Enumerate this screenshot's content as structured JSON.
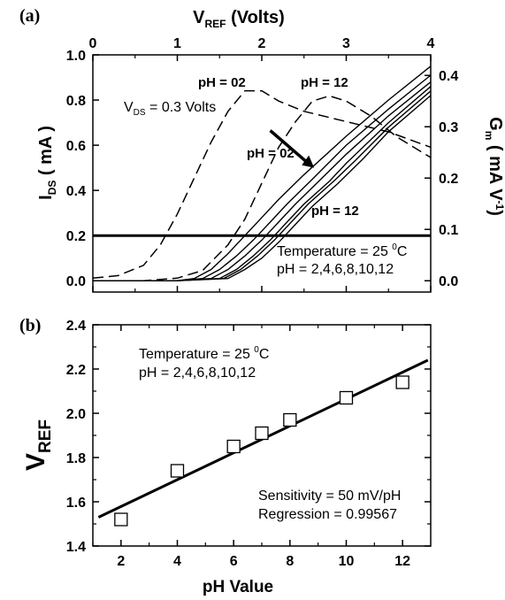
{
  "chart_data": [
    {
      "panel": "(a)",
      "type": "line",
      "top_xlabel": "V",
      "top_xlabel_sub": "REF",
      "top_xlabel_tail": " (Volts)",
      "xlim": [
        0,
        4
      ],
      "xticks": [
        "0",
        "1",
        "2",
        "3",
        "4"
      ],
      "ylabel_left": "I",
      "ylabel_left_sub": "DS",
      "ylabel_left_tail": " ( mA )",
      "ylim_left": [
        -0.05,
        1.0
      ],
      "yticks_left": [
        "0.0",
        "0.2",
        "0.4",
        "0.6",
        "0.8",
        "1.0"
      ],
      "ylabel_right": "G",
      "ylabel_right_sub": "m",
      "ylabel_right_tail": " ( mA V",
      "ylabel_right_sup": "-1",
      "ylabel_right_end": ")",
      "ylim_right": [
        -0.022,
        0.44
      ],
      "yticks_right": [
        "0.0",
        "0.1",
        "0.2",
        "0.3",
        "0.4"
      ],
      "hline": {
        "axis": "left",
        "y": 0.2
      },
      "annotations": {
        "vds": "V",
        "vds_sub": "DS",
        "vds_tail": " = 0.3 Volts",
        "gm_ph_low": "pH = 02",
        "gm_ph_high": "pH = 12",
        "ids_ph_low": "pH = 02",
        "ids_ph_high": "pH = 12",
        "temperature": "Temperature = 25 ",
        "temperature_sup": "0",
        "temperature_unit": "C",
        "ph_list": "pH = 2,4,6,8,10,12"
      },
      "series": [
        {
          "style": "solid",
          "axis": "left",
          "x": [
            0,
            0.5,
            1.0,
            1.2,
            1.4,
            1.6,
            1.8,
            2.0,
            2.2,
            2.5,
            3.0,
            3.5,
            4.0
          ],
          "y": [
            0,
            0,
            0,
            0.01,
            0.05,
            0.12,
            0.2,
            0.28,
            0.36,
            0.47,
            0.64,
            0.8,
            0.95
          ]
        },
        {
          "style": "solid",
          "axis": "left",
          "x": [
            0,
            0.5,
            1.0,
            1.3,
            1.5,
            1.7,
            1.9,
            2.1,
            2.3,
            2.6,
            3.0,
            3.5,
            4.0
          ],
          "y": [
            0,
            0,
            0,
            0.01,
            0.05,
            0.11,
            0.18,
            0.26,
            0.34,
            0.45,
            0.6,
            0.76,
            0.91
          ]
        },
        {
          "style": "solid",
          "axis": "left",
          "x": [
            0,
            0.5,
            1.0,
            1.4,
            1.6,
            1.8,
            2.0,
            2.2,
            2.4,
            2.7,
            3.0,
            3.5,
            4.0
          ],
          "y": [
            0,
            0,
            0,
            0.01,
            0.05,
            0.11,
            0.18,
            0.26,
            0.34,
            0.45,
            0.56,
            0.73,
            0.88
          ]
        },
        {
          "style": "solid",
          "axis": "left",
          "x": [
            0,
            0.5,
            1.0,
            1.5,
            1.7,
            1.9,
            2.1,
            2.3,
            2.5,
            2.8,
            3.0,
            3.5,
            4.0
          ],
          "y": [
            0,
            0,
            0,
            0.01,
            0.05,
            0.11,
            0.18,
            0.26,
            0.34,
            0.44,
            0.52,
            0.7,
            0.86
          ]
        },
        {
          "style": "solid",
          "axis": "left",
          "x": [
            0,
            0.5,
            1.0,
            1.55,
            1.75,
            1.95,
            2.15,
            2.35,
            2.55,
            2.85,
            3.1,
            3.5,
            4.0
          ],
          "y": [
            0,
            0,
            0,
            0.01,
            0.05,
            0.11,
            0.18,
            0.26,
            0.34,
            0.44,
            0.53,
            0.68,
            0.84
          ]
        },
        {
          "style": "solid",
          "axis": "left",
          "x": [
            0,
            0.5,
            1.0,
            1.6,
            1.8,
            2.0,
            2.2,
            2.4,
            2.6,
            2.9,
            3.2,
            3.5,
            4.0
          ],
          "y": [
            0,
            0,
            0,
            0.01,
            0.05,
            0.1,
            0.17,
            0.25,
            0.33,
            0.43,
            0.54,
            0.66,
            0.82
          ]
        },
        {
          "style": "dashed",
          "axis": "right",
          "x": [
            0,
            0.3,
            0.6,
            0.8,
            1.0,
            1.2,
            1.4,
            1.6,
            1.8,
            2.0,
            2.2,
            2.5,
            3.0,
            3.5,
            4.0
          ],
          "y": [
            0.005,
            0.01,
            0.03,
            0.07,
            0.13,
            0.2,
            0.27,
            0.33,
            0.37,
            0.37,
            0.35,
            0.33,
            0.31,
            0.29,
            0.26
          ]
        },
        {
          "style": "dashed",
          "axis": "right",
          "x": [
            0,
            0.6,
            1.0,
            1.3,
            1.6,
            1.8,
            2.0,
            2.2,
            2.4,
            2.6,
            2.8,
            3.0,
            3.3,
            3.6,
            4.0
          ],
          "y": [
            0,
            0,
            0.005,
            0.02,
            0.07,
            0.12,
            0.19,
            0.26,
            0.31,
            0.35,
            0.36,
            0.35,
            0.32,
            0.28,
            0.24
          ]
        }
      ]
    },
    {
      "panel": "(b)",
      "type": "scatter",
      "xlabel": "pH Value",
      "ylabel": "V",
      "ylabel_sub": "REF",
      "xlim": [
        1,
        13
      ],
      "ylim": [
        1.4,
        2.4
      ],
      "xticks": [
        "2",
        "4",
        "6",
        "8",
        "10",
        "12"
      ],
      "yticks": [
        "1.4",
        "1.6",
        "1.8",
        "2.0",
        "2.2",
        "2.4"
      ],
      "points": {
        "x": [
          2,
          4,
          6,
          7,
          8,
          10,
          12
        ],
        "y": [
          1.52,
          1.74,
          1.85,
          1.91,
          1.97,
          2.07,
          2.14
        ]
      },
      "fit": {
        "x": [
          1.2,
          12.9
        ],
        "y": [
          1.53,
          2.24
        ]
      },
      "annotations": {
        "temperature": "Temperature = 25 ",
        "temperature_sup": "0",
        "temperature_unit": "C",
        "ph_list": "pH = 2,4,6,8,10,12",
        "sensitivity": "Sensitivity = 50 mV/pH",
        "regression": "Regression = 0.99567"
      }
    }
  ]
}
